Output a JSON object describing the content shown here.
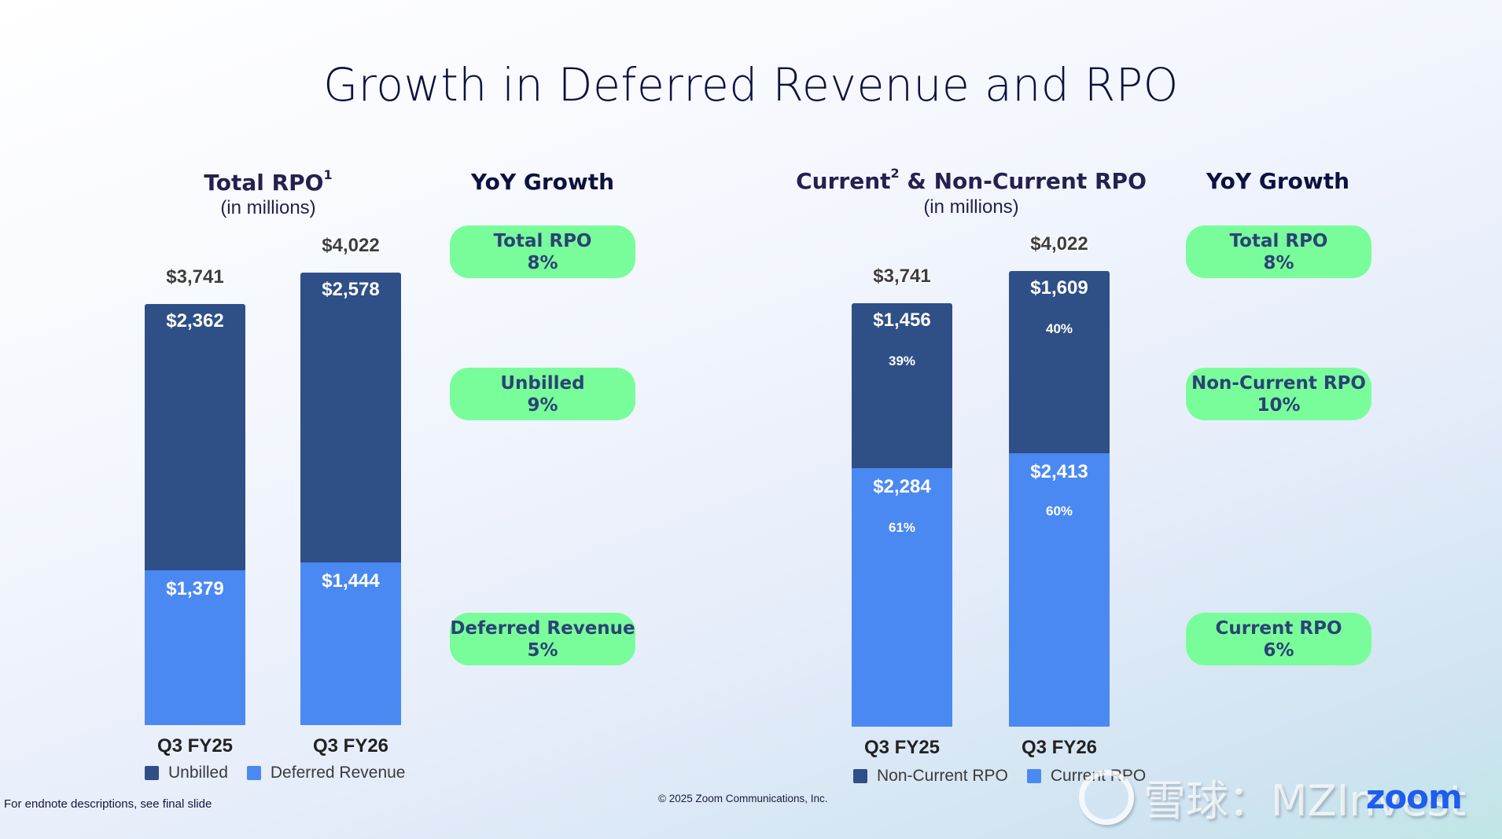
{
  "title": "Growth in Deferred Revenue and RPO",
  "colors": {
    "unbilled": "#2f4f87",
    "deferred_revenue": "#4b89f2",
    "non_current_rpo": "#2f4f87",
    "current_rpo": "#4b89f2",
    "pill": "#79fd9b",
    "pill_text": "#2b4375",
    "logo": "#1f5cf0"
  },
  "left": {
    "title": "Total RPO",
    "title_sup": "1",
    "subtitle": "(in millions)",
    "yoy_title": "YoY Growth",
    "pills": [
      {
        "label": "Total RPO",
        "value": "8%"
      },
      {
        "label": "Unbilled",
        "value": "9%"
      },
      {
        "label": "Deferred Revenue",
        "value": "5%"
      }
    ]
  },
  "right": {
    "title": "Current",
    "title_sup": "2",
    "title_rest": " & Non-Current RPO",
    "subtitle": "(in millions)",
    "yoy_title": "YoY Growth",
    "pills": [
      {
        "label": "Total RPO",
        "value": "8%"
      },
      {
        "label": "Non-Current RPO",
        "value": "10%"
      },
      {
        "label": "Current RPO",
        "value": "6%"
      }
    ]
  },
  "chart_data": [
    {
      "type": "bar",
      "stacked": true,
      "title": "Total RPO (in millions)",
      "categories": [
        "Q3 FY25",
        "Q3 FY26"
      ],
      "series": [
        {
          "name": "Deferred Revenue",
          "values": [
            1379,
            1444
          ],
          "labels": [
            "$1,379",
            "$1,444"
          ]
        },
        {
          "name": "Unbilled",
          "values": [
            2362,
            2578
          ],
          "labels": [
            "$2,362",
            "$2,578"
          ]
        }
      ],
      "totals": [
        3741,
        4022
      ],
      "total_labels": [
        "$3,741",
        "$4,022"
      ],
      "legend": [
        "Unbilled",
        "Deferred Revenue"
      ],
      "legend_position": "bottom",
      "ylim": [
        0,
        4022
      ],
      "grid": false,
      "xlabel": "",
      "ylabel": ""
    },
    {
      "type": "bar",
      "stacked": true,
      "title": "Current & Non-Current RPO (in millions)",
      "categories": [
        "Q3 FY25",
        "Q3 FY26"
      ],
      "series": [
        {
          "name": "Current RPO",
          "values": [
            2284,
            2413
          ],
          "labels": [
            "$2,284",
            "$2,413"
          ],
          "pct_labels": [
            "61%",
            "60%"
          ]
        },
        {
          "name": "Non-Current RPO",
          "values": [
            1456,
            1609
          ],
          "labels": [
            "$1,456",
            "$1,609"
          ],
          "pct_labels": [
            "39%",
            "40%"
          ]
        }
      ],
      "totals": [
        3741,
        4022
      ],
      "total_labels": [
        "$3,741",
        "$4,022"
      ],
      "legend": [
        "Non-Current RPO",
        "Current RPO"
      ],
      "legend_position": "bottom",
      "ylim": [
        0,
        4022
      ],
      "grid": false,
      "xlabel": "",
      "ylabel": ""
    }
  ],
  "footer": {
    "footnote": "For endnote descriptions, see final slide",
    "copyright": "© 2025 Zoom Communications, Inc.",
    "logo": "zoom",
    "watermark": "雪球：MZInvest"
  }
}
